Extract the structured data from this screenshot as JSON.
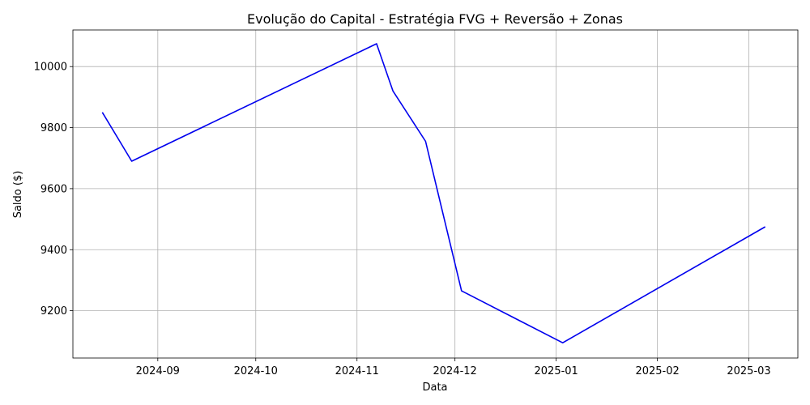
{
  "chart_data": {
    "type": "line",
    "title": "Evolução do Capital - Estratégia FVG + Reversão + Zonas",
    "xlabel": "Data",
    "ylabel": "Saldo ($)",
    "x_type": "date",
    "xlim": [
      "2024-08-06",
      "2025-03-16"
    ],
    "ylim": [
      9045,
      10120
    ],
    "x_ticks": [
      {
        "date": "2024-09-01",
        "label": "2024-09"
      },
      {
        "date": "2024-10-01",
        "label": "2024-10"
      },
      {
        "date": "2024-11-01",
        "label": "2024-11"
      },
      {
        "date": "2024-12-01",
        "label": "2024-12"
      },
      {
        "date": "2025-01-01",
        "label": "2025-01"
      },
      {
        "date": "2025-02-01",
        "label": "2025-02"
      },
      {
        "date": "2025-03-01",
        "label": "2025-03"
      }
    ],
    "y_ticks": [
      9200,
      9400,
      9600,
      9800,
      10000
    ],
    "grid": true,
    "series": [
      {
        "color": "#0000ee",
        "points": [
          {
            "x": "2024-08-15",
            "y": 9850
          },
          {
            "x": "2024-08-24",
            "y": 9690
          },
          {
            "x": "2024-11-07",
            "y": 10075
          },
          {
            "x": "2024-11-12",
            "y": 9920
          },
          {
            "x": "2024-11-22",
            "y": 9755
          },
          {
            "x": "2024-12-03",
            "y": 9265
          },
          {
            "x": "2025-01-03",
            "y": 9095
          },
          {
            "x": "2025-03-06",
            "y": 9475
          }
        ]
      }
    ]
  }
}
